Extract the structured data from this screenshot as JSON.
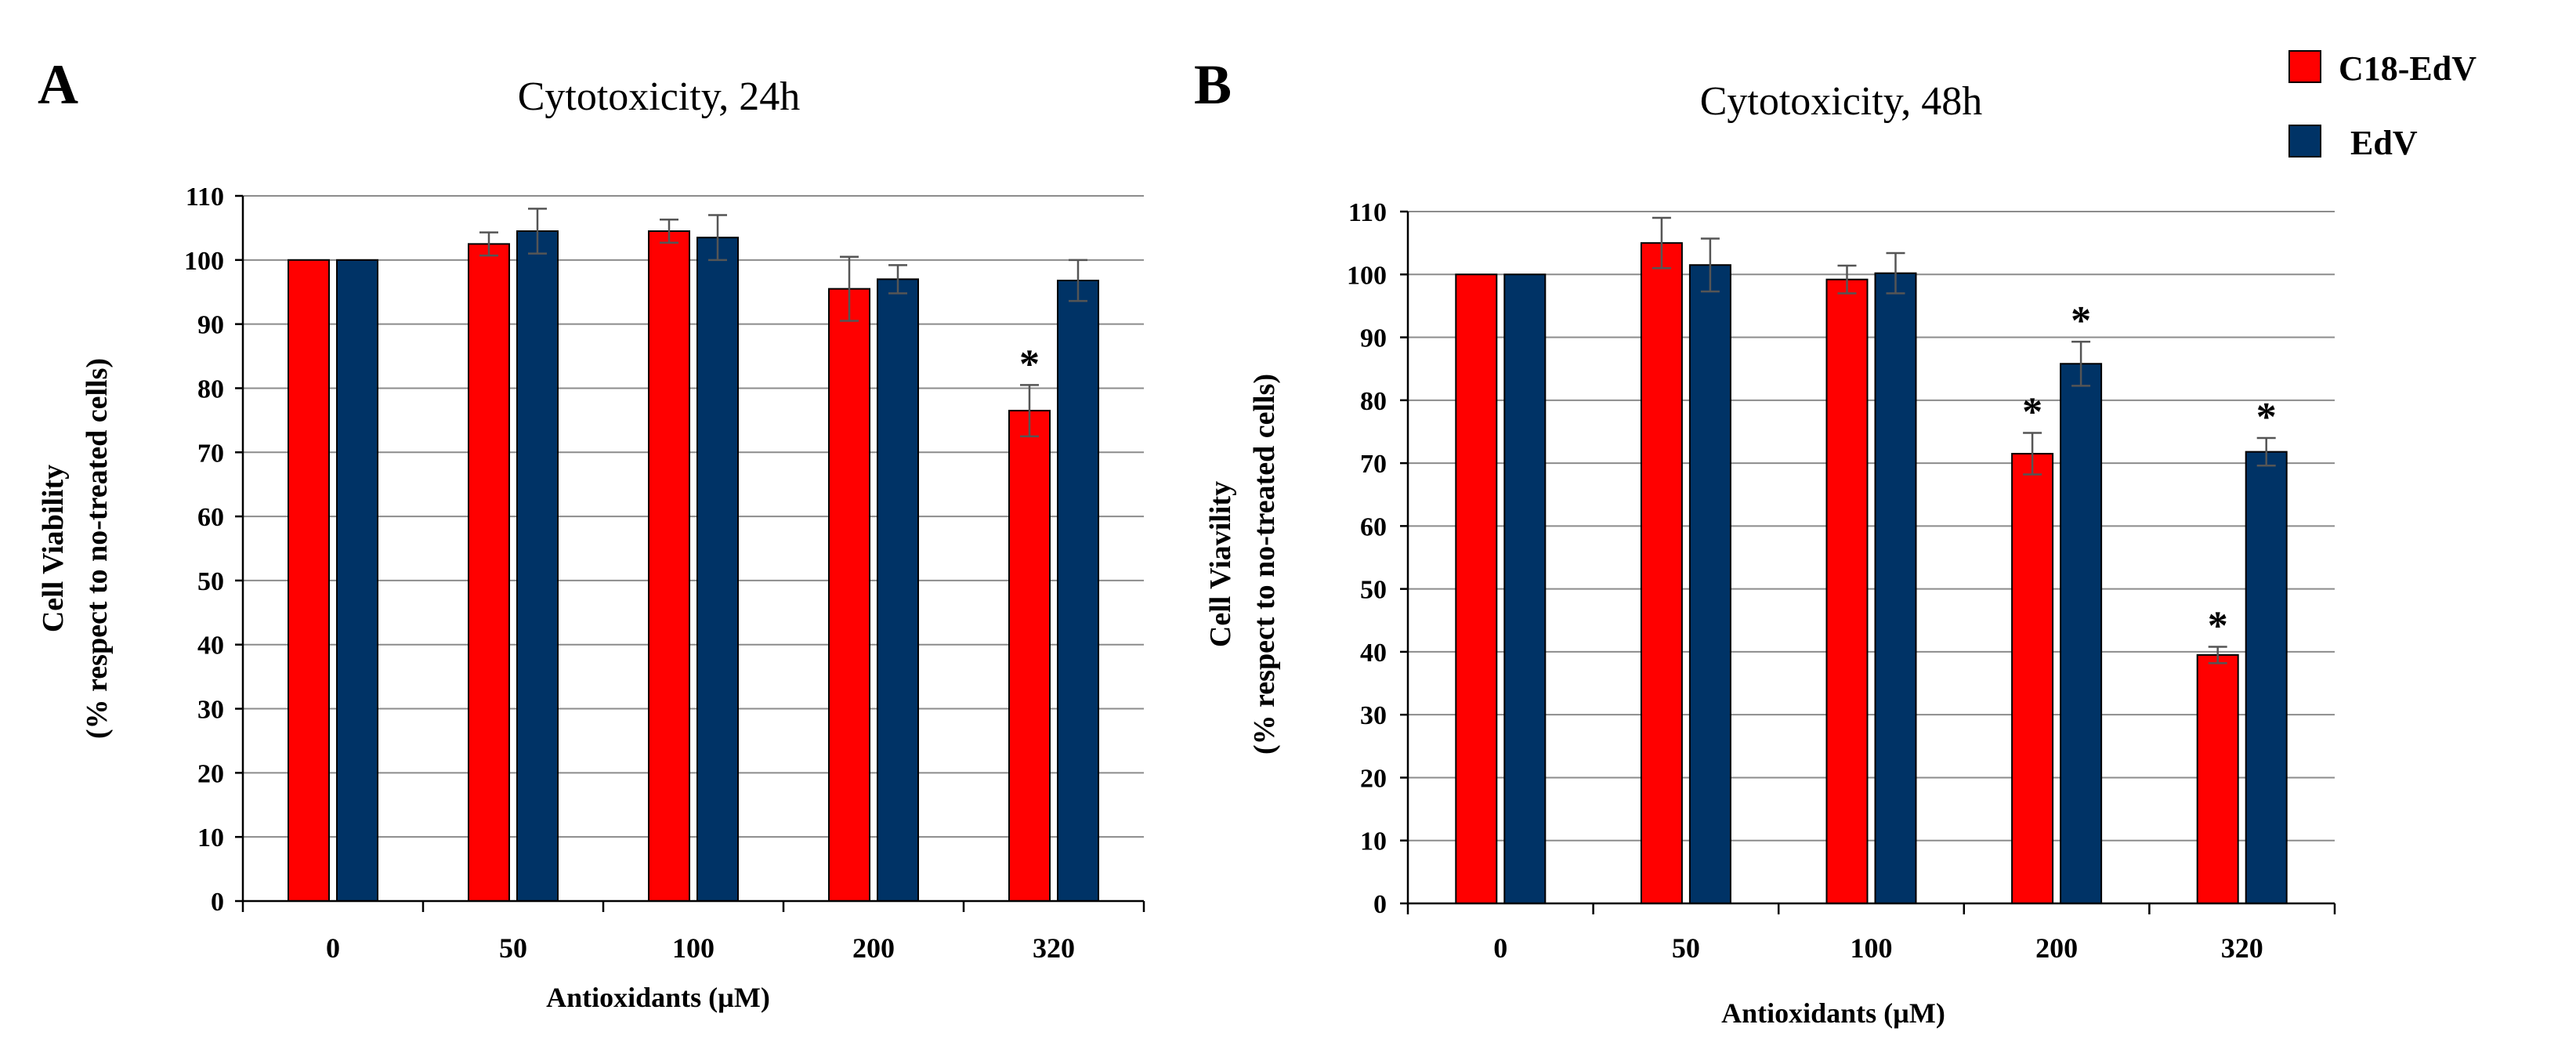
{
  "chart_data": [
    {
      "type": "bar",
      "panel_letter": "A",
      "title": "Cytotoxicity, 24h",
      "xlabel": "Antioxidants  (µM)",
      "ylabel_line1": "Cell Viability",
      "ylabel_line2": "(% respect to no-treated cells)",
      "categories": [
        "0",
        "50",
        "100",
        "200",
        "320"
      ],
      "ylim": [
        0,
        110
      ],
      "yticks": [
        0,
        10,
        20,
        30,
        40,
        50,
        60,
        70,
        80,
        90,
        100,
        110
      ],
      "grid": true,
      "series": [
        {
          "name": "C18-EdV",
          "color": "#ff0000",
          "values": [
            100,
            102.5,
            104.5,
            95.5,
            76.5
          ],
          "errors": [
            0,
            1.8,
            1.8,
            5,
            4
          ],
          "significant": [
            false,
            false,
            false,
            false,
            true
          ]
        },
        {
          "name": "EdV",
          "color": "#003366",
          "values": [
            100,
            104.5,
            103.5,
            97,
            96.8
          ],
          "errors": [
            0,
            3.5,
            3.5,
            2.2,
            3.2
          ],
          "significant": [
            false,
            false,
            false,
            false,
            false
          ]
        }
      ]
    },
    {
      "type": "bar",
      "panel_letter": "B",
      "title": "Cytotoxicity, 48h",
      "xlabel": "Antioxidants  (µM)",
      "ylabel_line1": "Cell Viavility",
      "ylabel_line2": "(% respect to no-treated cells)",
      "categories": [
        "0",
        "50",
        "100",
        "200",
        "320"
      ],
      "ylim": [
        0,
        110
      ],
      "yticks": [
        0,
        10,
        20,
        30,
        40,
        50,
        60,
        70,
        80,
        90,
        100,
        110
      ],
      "grid": true,
      "series": [
        {
          "name": "C18-EdV",
          "color": "#ff0000",
          "values": [
            100,
            105,
            99.2,
            71.5,
            39.5
          ],
          "errors": [
            0,
            4,
            2.2,
            3.3,
            1.3
          ],
          "significant": [
            false,
            false,
            false,
            true,
            true
          ]
        },
        {
          "name": "EdV",
          "color": "#003366",
          "values": [
            100,
            101.5,
            100.2,
            85.8,
            71.8
          ],
          "errors": [
            0,
            4.2,
            3.2,
            3.5,
            2.2
          ],
          "significant": [
            false,
            false,
            false,
            true,
            true
          ]
        }
      ]
    }
  ],
  "legend": {
    "position": "top-right",
    "items": [
      {
        "label": "C18-EdV",
        "color": "#ff0000"
      },
      {
        "label": "EdV",
        "color": "#003366"
      }
    ]
  },
  "significance_marker": "*"
}
